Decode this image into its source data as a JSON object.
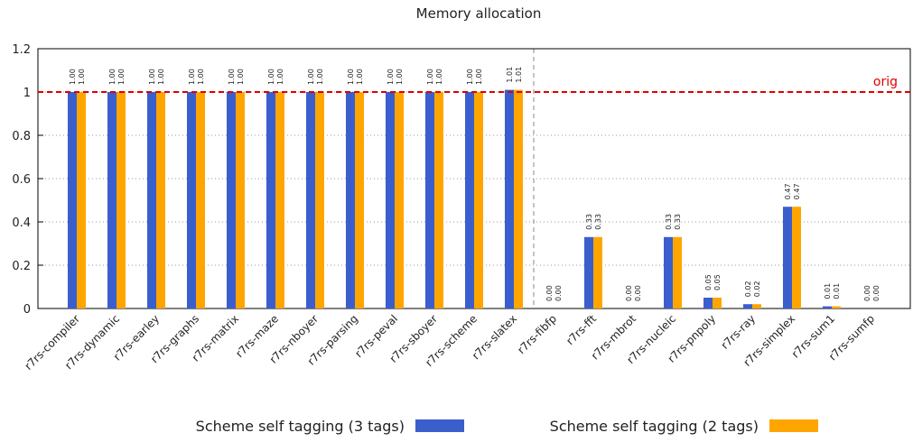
{
  "chart_data": {
    "type": "bar",
    "title": "Memory allocation",
    "categories": [
      "r7rs-compiler",
      "r7rs-dynamic",
      "r7rs-earley",
      "r7rs-graphs",
      "r7rs-matrix",
      "r7rs-maze",
      "r7rs-nboyer",
      "r7rs-parsing",
      "r7rs-peval",
      "r7rs-sboyer",
      "r7rs-scheme",
      "r7rs-slatex",
      "r7rs-fibfp",
      "r7rs-fft",
      "r7rs-mbrot",
      "r7rs-nucleic",
      "r7rs-pnpoly",
      "r7rs-ray",
      "r7rs-simplex",
      "r7rs-sum1",
      "r7rs-sumfp"
    ],
    "series": [
      {
        "name": "Scheme self tagging (3 tags)",
        "color": "#3a5fcd",
        "values": [
          1,
          1,
          1,
          1,
          1,
          1,
          1,
          1,
          1,
          1,
          1,
          1.01,
          0,
          0.33,
          0,
          0.33,
          0.05,
          0.02,
          0.47,
          0.01,
          0
        ],
        "value_labels": [
          "1.00",
          "1.00",
          "1.00",
          "1.00",
          "1.00",
          "1.00",
          "1.00",
          "1.00",
          "1.00",
          "1.00",
          "1.00",
          "1.01",
          "0.00",
          "0.33",
          "0.00",
          "0.33",
          "0.05",
          "0.02",
          "0.47",
          "0.01",
          "0.00"
        ]
      },
      {
        "name": "Scheme self tagging (2 tags)",
        "color": "#ffa500",
        "values": [
          1,
          1,
          1,
          1,
          1,
          1,
          1,
          1,
          1,
          1,
          1,
          1.01,
          0,
          0.33,
          0,
          0.33,
          0.05,
          0.02,
          0.47,
          0.01,
          0
        ],
        "value_labels": [
          "1.00",
          "1.00",
          "1.00",
          "1.00",
          "1.00",
          "1.00",
          "1.00",
          "1.00",
          "1.00",
          "1.00",
          "1.00",
          "1.01",
          "0.00",
          "0.33",
          "0.00",
          "0.33",
          "0.05",
          "0.02",
          "0.47",
          "0.01",
          "0.00"
        ]
      }
    ],
    "ylim": [
      0,
      1.2
    ],
    "yticks": [
      0,
      0.2,
      0.4,
      0.6,
      0.8,
      1,
      1.2
    ],
    "grid": true,
    "reference_line": {
      "value": 1,
      "label": "orig",
      "color": "#e00000"
    }
  }
}
